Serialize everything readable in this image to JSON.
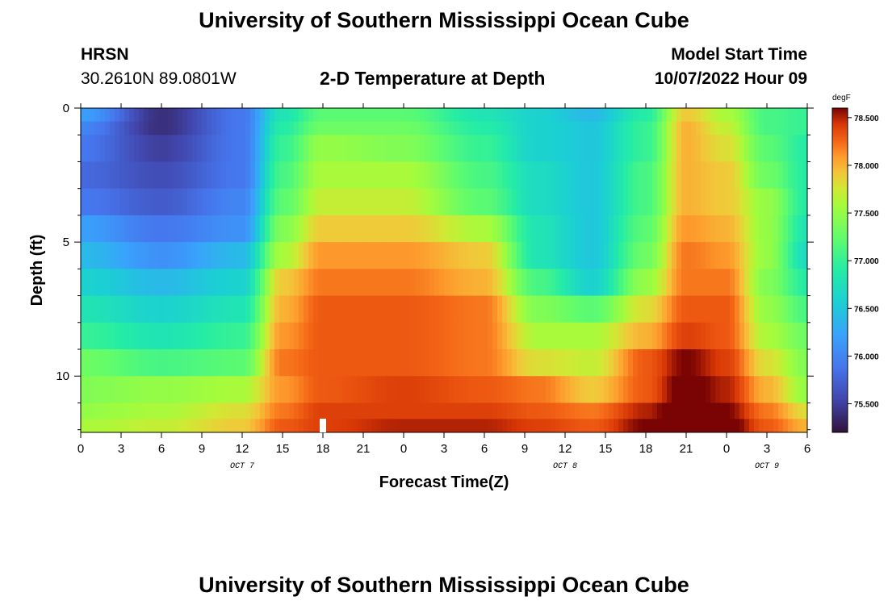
{
  "page": {
    "title_top": "University of Southern Mississippi Ocean Cube",
    "title_bottom": "University of Southern Mississippi Ocean Cube",
    "station": "HRSN",
    "coords": "30.2610N  89.0801W",
    "plot_title": "2-D Temperature at Depth",
    "model_start_label": "Model Start Time",
    "model_start_value": "10/07/2022 Hour 09"
  },
  "chart_data": {
    "type": "heatmap",
    "title": "2-D Temperature at Depth",
    "xlabel": "Forecast Time(Z)",
    "ylabel": "Depth (ft)",
    "x_ticks": [
      "0",
      "3",
      "6",
      "9",
      "12",
      "15",
      "18",
      "21",
      "0",
      "3",
      "6",
      "9",
      "12",
      "15",
      "18",
      "21",
      "0",
      "3",
      "6"
    ],
    "x_range_hours": [
      0,
      54
    ],
    "date_labels": [
      {
        "text": "OCT 7",
        "hour": 12
      },
      {
        "text": "OCT 8",
        "hour": 36
      },
      {
        "text": "OCT 9",
        "hour": 51
      }
    ],
    "y_ticks": [
      "0",
      "5",
      "10"
    ],
    "y_range_ft": [
      0,
      12.1
    ],
    "marker": {
      "hour": 18,
      "label": ""
    },
    "colorbar": {
      "unit": "degF",
      "range": [
        75.2,
        78.6
      ],
      "ticks": [
        "78.500",
        "78.000",
        "77.500",
        "77.000",
        "76.500",
        "76.000",
        "75.500"
      ],
      "tick_values": [
        78.5,
        78.0,
        77.5,
        77.0,
        76.5,
        76.0,
        75.5
      ]
    },
    "layer_depths_ft": [
      0.25,
      0.75,
      1.5,
      2.5,
      3.5,
      4.5,
      5.5,
      6.5,
      7.5,
      8.5,
      9.5,
      10.5,
      11.5,
      11.9
    ],
    "keyframes_hours": [
      0,
      6,
      12,
      15,
      18,
      24,
      30,
      34,
      38,
      42,
      45,
      48,
      51,
      54
    ],
    "temperature_degF": [
      [
        76.2,
        75.4,
        75.9,
        76.8,
        77.2,
        77.2,
        76.8,
        76.6,
        76.4,
        76.9,
        77.9,
        77.6,
        77.1,
        77.0
      ],
      [
        76.0,
        75.4,
        75.9,
        76.9,
        77.3,
        77.3,
        76.9,
        76.6,
        76.5,
        77.0,
        78.0,
        77.7,
        77.1,
        77.0
      ],
      [
        75.9,
        75.5,
        75.9,
        77.0,
        77.5,
        77.4,
        77.0,
        76.6,
        76.5,
        77.0,
        78.0,
        77.8,
        77.2,
        76.9
      ],
      [
        75.8,
        75.6,
        75.9,
        77.1,
        77.6,
        77.6,
        77.1,
        76.7,
        76.5,
        77.1,
        78.0,
        77.9,
        77.3,
        76.9
      ],
      [
        75.9,
        75.7,
        76.0,
        77.2,
        77.7,
        77.7,
        77.2,
        76.7,
        76.5,
        77.1,
        78.0,
        77.9,
        77.5,
        76.9
      ],
      [
        76.2,
        75.9,
        76.1,
        77.4,
        77.9,
        77.9,
        77.6,
        76.8,
        76.5,
        77.2,
        78.1,
        78.0,
        77.5,
        76.8
      ],
      [
        76.4,
        76.1,
        76.4,
        77.6,
        78.1,
        78.1,
        77.9,
        76.8,
        76.5,
        77.3,
        78.2,
        78.1,
        77.5,
        76.7
      ],
      [
        76.6,
        76.4,
        76.6,
        77.9,
        78.2,
        78.2,
        78.0,
        77.1,
        76.6,
        77.5,
        78.2,
        78.2,
        77.4,
        76.9
      ],
      [
        76.8,
        76.6,
        76.8,
        78.0,
        78.3,
        78.3,
        78.2,
        77.4,
        77.2,
        77.8,
        78.3,
        78.3,
        77.5,
        77.1
      ],
      [
        77.0,
        76.8,
        77.0,
        78.1,
        78.3,
        78.3,
        78.2,
        77.6,
        77.6,
        78.0,
        78.4,
        78.3,
        77.6,
        77.3
      ],
      [
        77.3,
        77.1,
        77.2,
        78.2,
        78.3,
        78.3,
        78.2,
        77.8,
        77.7,
        78.3,
        78.6,
        78.4,
        77.8,
        77.4
      ],
      [
        77.4,
        77.5,
        77.6,
        78.1,
        78.3,
        78.4,
        78.3,
        78.2,
        77.9,
        78.3,
        78.7,
        78.5,
        78.0,
        77.5
      ],
      [
        77.5,
        77.6,
        77.8,
        78.2,
        78.4,
        78.4,
        78.4,
        78.3,
        78.2,
        78.5,
        78.8,
        78.6,
        78.2,
        77.8
      ],
      [
        77.6,
        77.7,
        77.9,
        78.3,
        78.4,
        78.5,
        78.5,
        78.4,
        78.3,
        78.6,
        78.8,
        78.7,
        78.3,
        78.0
      ]
    ]
  }
}
